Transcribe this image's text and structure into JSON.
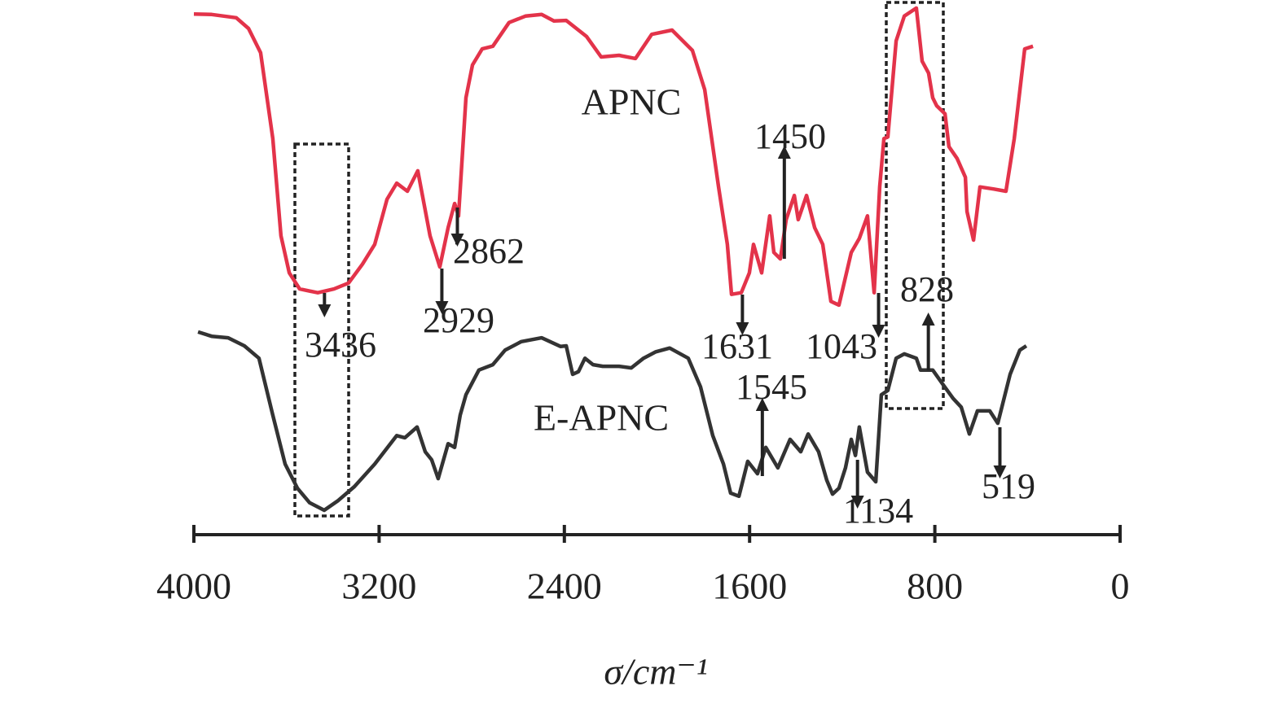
{
  "chart_data": {
    "type": "line",
    "xlabel": "σ/cm⁻¹",
    "xlim": [
      4000,
      0
    ],
    "xticks": [
      4000,
      3200,
      2400,
      1600,
      800,
      0
    ],
    "ylim": [
      0,
      100
    ],
    "series": [
      {
        "name": "APNC",
        "color": "#e3334a",
        "x": [
          4000,
          3923,
          3817,
          3764,
          3712,
          3659,
          3624,
          3588,
          3543,
          3465,
          3395,
          3332,
          3272,
          3219,
          3166,
          3124,
          3078,
          3033,
          2980,
          2938,
          2902,
          2874,
          2857,
          2825,
          2797,
          2755,
          2709,
          2639,
          2568,
          2498,
          2445,
          2392,
          2304,
          2241,
          2164,
          2093,
          2023,
          1935,
          1847,
          1794,
          1734,
          1696,
          1678,
          1636,
          1601,
          1583,
          1548,
          1513,
          1495,
          1467,
          1442,
          1407,
          1390,
          1354,
          1319,
          1284,
          1249,
          1214,
          1161,
          1126,
          1091,
          1062,
          1038,
          1020,
          1003,
          967,
          932,
          880,
          855,
          827,
          809,
          792,
          756,
          739,
          704,
          668,
          661,
          633,
          605,
          545,
          493,
          457,
          412,
          376
        ],
        "values": [
          97.4,
          97.3,
          96.7,
          94.7,
          90.2,
          74.2,
          56.1,
          49.2,
          46.2,
          45.5,
          46.2,
          47.3,
          50.8,
          54.5,
          62.9,
          65.9,
          64.4,
          68.2,
          56.1,
          50.3,
          57.6,
          62.1,
          59.8,
          81.8,
          87.9,
          90.9,
          91.4,
          95.8,
          97.0,
          97.3,
          96.1,
          96.2,
          93.2,
          89.4,
          89.7,
          89.1,
          93.6,
          94.4,
          90.6,
          83.3,
          65.2,
          54.5,
          45.2,
          45.5,
          49.2,
          54.5,
          49.2,
          59.8,
          53.0,
          51.8,
          59.1,
          63.6,
          59.1,
          63.6,
          57.6,
          54.5,
          43.9,
          43.2,
          53.0,
          55.6,
          59.8,
          45.5,
          65.2,
          74.2,
          74.5,
          92.4,
          97.0,
          98.5,
          88.6,
          86.4,
          81.8,
          80.3,
          78.8,
          72.7,
          70.5,
          67.0,
          60.6,
          55.3,
          65.2,
          64.8,
          64.4,
          74.2,
          90.9,
          91.4
        ]
      },
      {
        "name": "E-APNC",
        "color": "#333333",
        "x": [
          3982,
          3923,
          3852,
          3782,
          3719,
          3659,
          3606,
          3553,
          3500,
          3437,
          3377,
          3307,
          3219,
          3124,
          3089,
          3036,
          3001,
          2973,
          2945,
          2902,
          2874,
          2850,
          2825,
          2769,
          2709,
          2656,
          2586,
          2498,
          2417,
          2392,
          2364,
          2339,
          2311,
          2276,
          2234,
          2164,
          2111,
          2058,
          2005,
          1945,
          1865,
          1812,
          1759,
          1713,
          1682,
          1646,
          1608,
          1566,
          1530,
          1478,
          1425,
          1379,
          1347,
          1302,
          1267,
          1242,
          1214,
          1186,
          1161,
          1143,
          1126,
          1091,
          1055,
          1031,
          1003,
          967,
          932,
          880,
          862,
          809,
          763,
          721,
          686,
          651,
          616,
          563,
          528,
          475,
          433,
          405
        ],
        "values": [
          38.2,
          37.4,
          37.1,
          35.6,
          33.3,
          22.7,
          13.6,
          9.1,
          6.4,
          5.0,
          6.8,
          9.4,
          13.6,
          18.9,
          18.5,
          20.5,
          15.9,
          14.4,
          10.9,
          17.4,
          16.7,
          22.7,
          26.5,
          31.1,
          32.1,
          34.8,
          36.4,
          37.1,
          35.5,
          35.6,
          30.3,
          30.8,
          33.3,
          32.1,
          31.8,
          31.8,
          31.5,
          33.3,
          34.5,
          35.2,
          33.3,
          28.0,
          18.9,
          13.6,
          8.2,
          7.6,
          14.1,
          11.8,
          16.7,
          12.9,
          18.2,
          15.9,
          19.2,
          15.9,
          10.6,
          8.0,
          9.1,
          12.9,
          18.2,
          15.2,
          20.5,
          12.1,
          10.3,
          26.5,
          27.3,
          33.3,
          34.1,
          33.3,
          31.1,
          31.1,
          28.3,
          25.8,
          24.2,
          19.2,
          23.5,
          23.5,
          21.2,
          30.3,
          34.8,
          35.6
        ]
      }
    ],
    "annotations": [
      3436,
      2929,
      2862,
      1631,
      1450,
      1043,
      828,
      1545,
      1134,
      519
    ]
  }
}
